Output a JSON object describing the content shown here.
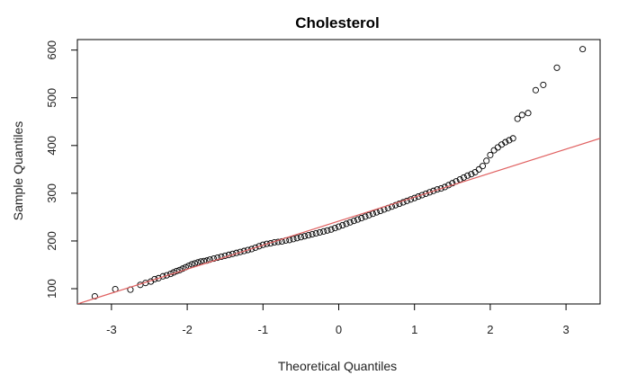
{
  "chart_data": {
    "type": "scatter",
    "title": "Cholesterol",
    "xlabel": "Theoretical Quantiles",
    "ylabel": "Sample Quantiles",
    "xlim": [
      -3.45,
      3.45
    ],
    "ylim": [
      68,
      622
    ],
    "x_ticks": [
      -3,
      -2,
      -1,
      0,
      1,
      2,
      3
    ],
    "y_ticks": [
      100,
      200,
      300,
      400,
      500,
      600
    ],
    "grid": false,
    "legend": "none",
    "colors": {
      "points": "#000000",
      "reference_line": "#e06060",
      "axes": "#000000"
    },
    "reference_line": {
      "description": "qqline",
      "points": [
        [
          -3.45,
          68
        ],
        [
          3.45,
          415
        ]
      ]
    },
    "series": [
      {
        "values": [
          [
            -3.22,
            84
          ],
          [
            -2.95,
            99
          ],
          [
            -2.75,
            98
          ],
          [
            -2.62,
            108
          ],
          [
            -2.55,
            112
          ],
          [
            -2.48,
            115
          ],
          [
            -2.43,
            120
          ],
          [
            -2.38,
            122
          ],
          [
            -2.32,
            126
          ],
          [
            -2.27,
            128
          ],
          [
            -2.22,
            131
          ],
          [
            -2.18,
            134
          ],
          [
            -2.14,
            137
          ],
          [
            -2.1,
            139
          ],
          [
            -2.06,
            142
          ],
          [
            -2.02,
            145
          ],
          [
            -1.98,
            148
          ],
          [
            -1.94,
            151
          ],
          [
            -1.9,
            153
          ],
          [
            -1.86,
            155
          ],
          [
            -1.82,
            157
          ],
          [
            -1.78,
            158
          ],
          [
            -1.74,
            159
          ],
          [
            -1.7,
            161
          ],
          [
            -1.65,
            163
          ],
          [
            -1.6,
            165
          ],
          [
            -1.55,
            167
          ],
          [
            -1.5,
            169
          ],
          [
            -1.45,
            171
          ],
          [
            -1.4,
            173
          ],
          [
            -1.35,
            175
          ],
          [
            -1.3,
            177
          ],
          [
            -1.25,
            179
          ],
          [
            -1.2,
            181
          ],
          [
            -1.15,
            183
          ],
          [
            -1.1,
            186
          ],
          [
            -1.05,
            189
          ],
          [
            -1.0,
            192
          ],
          [
            -0.95,
            194
          ],
          [
            -0.9,
            195
          ],
          [
            -0.85,
            197
          ],
          [
            -0.8,
            198
          ],
          [
            -0.75,
            199
          ],
          [
            -0.7,
            201
          ],
          [
            -0.65,
            202
          ],
          [
            -0.6,
            204
          ],
          [
            -0.55,
            206
          ],
          [
            -0.5,
            208
          ],
          [
            -0.45,
            210
          ],
          [
            -0.4,
            212
          ],
          [
            -0.35,
            214
          ],
          [
            -0.3,
            216
          ],
          [
            -0.25,
            218
          ],
          [
            -0.2,
            220
          ],
          [
            -0.15,
            222
          ],
          [
            -0.1,
            224
          ],
          [
            -0.05,
            227
          ],
          [
            0.0,
            230
          ],
          [
            0.05,
            233
          ],
          [
            0.1,
            236
          ],
          [
            0.15,
            239
          ],
          [
            0.2,
            242
          ],
          [
            0.25,
            245
          ],
          [
            0.3,
            248
          ],
          [
            0.35,
            251
          ],
          [
            0.4,
            254
          ],
          [
            0.45,
            257
          ],
          [
            0.5,
            260
          ],
          [
            0.55,
            263
          ],
          [
            0.6,
            266
          ],
          [
            0.65,
            269
          ],
          [
            0.7,
            272
          ],
          [
            0.75,
            275
          ],
          [
            0.8,
            278
          ],
          [
            0.85,
            281
          ],
          [
            0.9,
            284
          ],
          [
            0.95,
            287
          ],
          [
            1.0,
            290
          ],
          [
            1.05,
            293
          ],
          [
            1.1,
            296
          ],
          [
            1.15,
            299
          ],
          [
            1.2,
            302
          ],
          [
            1.25,
            305
          ],
          [
            1.3,
            308
          ],
          [
            1.35,
            310
          ],
          [
            1.4,
            313
          ],
          [
            1.45,
            317
          ],
          [
            1.5,
            321
          ],
          [
            1.55,
            325
          ],
          [
            1.6,
            329
          ],
          [
            1.65,
            333
          ],
          [
            1.7,
            337
          ],
          [
            1.75,
            340
          ],
          [
            1.8,
            344
          ],
          [
            1.85,
            350
          ],
          [
            1.9,
            357
          ],
          [
            1.95,
            368
          ],
          [
            2.0,
            380
          ],
          [
            2.05,
            390
          ],
          [
            2.1,
            396
          ],
          [
            2.15,
            402
          ],
          [
            2.2,
            407
          ],
          [
            2.25,
            411
          ],
          [
            2.3,
            415
          ],
          [
            2.36,
            456
          ],
          [
            2.42,
            464
          ],
          [
            2.5,
            468
          ],
          [
            2.6,
            516
          ],
          [
            2.7,
            527
          ],
          [
            2.88,
            563
          ],
          [
            3.22,
            602
          ]
        ]
      }
    ]
  }
}
